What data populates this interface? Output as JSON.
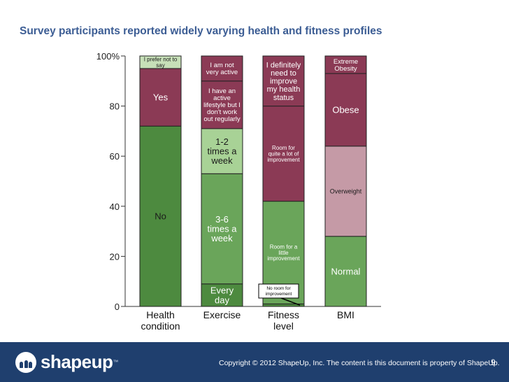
{
  "title": "Survey participants reported widely varying health and fitness profiles",
  "chart_data": {
    "type": "bar",
    "stacked": true,
    "ylim": [
      0,
      100
    ],
    "yticks": [
      {
        "value": 0,
        "label": "0"
      },
      {
        "value": 20,
        "label": "20"
      },
      {
        "value": 40,
        "label": "40"
      },
      {
        "value": 60,
        "label": "60"
      },
      {
        "value": 80,
        "label": "80"
      },
      {
        "value": 100,
        "label": "100%"
      }
    ],
    "categories": [
      {
        "name": "health-condition",
        "label_lines": [
          "Health",
          "condition"
        ],
        "segments": [
          {
            "label": "No",
            "lines": [
              "No"
            ],
            "value": 72,
            "color": "#4d8a3f",
            "text_color": "#1a1a1a",
            "size": 13
          },
          {
            "label": "Yes",
            "lines": [
              "Yes"
            ],
            "value": 23,
            "color": "#8b3a55",
            "text_color": "#ffffff",
            "size": 13
          },
          {
            "label": "I prefer not to say",
            "lines": [
              "I prefer not to",
              "say"
            ],
            "value": 5,
            "color": "#c7e0b8",
            "text_color": "#1a1a1a",
            "size": 8
          }
        ]
      },
      {
        "name": "exercise",
        "label_lines": [
          "Exercise"
        ],
        "segments": [
          {
            "label": "Every day",
            "lines": [
              "Every",
              "day"
            ],
            "value": 9,
            "color": "#4d8a3f",
            "text_color": "#ffffff",
            "size": 13
          },
          {
            "label": "3-6 times a week",
            "lines": [
              "3-6",
              "times a",
              "week"
            ],
            "value": 44,
            "color": "#6aa55a",
            "text_color": "#ffffff",
            "size": 13
          },
          {
            "label": "1-2 times a week",
            "lines": [
              "1-2",
              "times a",
              "week"
            ],
            "value": 18,
            "color": "#a8d296",
            "text_color": "#1a1a1a",
            "size": 13
          },
          {
            "label": "I have an active lifestyle but I don't work out regularly",
            "lines": [
              "I have an",
              "active",
              "lifestyle but I",
              "don't work",
              "out regularly"
            ],
            "value": 19,
            "color": "#8b3a55",
            "text_color": "#ffffff",
            "size": 9.5
          },
          {
            "label": "I am not very active",
            "lines": [
              "I am not",
              "very active"
            ],
            "value": 10,
            "color": "#8b3a55",
            "text_color": "#ffffff",
            "size": 9.5
          }
        ]
      },
      {
        "name": "fitness-level",
        "label_lines": [
          "Fitness",
          "level"
        ],
        "segments": [
          {
            "label": "No room for improvement",
            "lines": [],
            "value": 1,
            "color": "#4d8a3f",
            "text_color": "#000000",
            "size": 7
          },
          {
            "label": "Room for a little improvement",
            "lines": [
              "Room for a",
              "little",
              "improvement"
            ],
            "value": 41,
            "color": "#6aa55a",
            "text_color": "#ffffff",
            "size": 8
          },
          {
            "label": "Room for quite a lot of improvement",
            "lines": [
              "Room for",
              "quite a lot of",
              "improvement"
            ],
            "value": 38,
            "color": "#8b3a55",
            "text_color": "#ffffff",
            "size": 8
          },
          {
            "label": "I definitely need to improve my health status",
            "lines": [
              "I definitely",
              "need to",
              "improve",
              "my health",
              "status"
            ],
            "value": 20,
            "color": "#8b3a55",
            "text_color": "#ffffff",
            "size": 11
          }
        ]
      },
      {
        "name": "bmi",
        "label_lines": [
          "BMI"
        ],
        "segments": [
          {
            "label": "Normal",
            "lines": [
              "Normal"
            ],
            "value": 28,
            "color": "#6aa55a",
            "text_color": "#ffffff",
            "size": 13
          },
          {
            "label": "Overweight",
            "lines": [
              "Overweight"
            ],
            "value": 36,
            "color": "#c59aa6",
            "text_color": "#1a1a1a",
            "size": 9
          },
          {
            "label": "Obese",
            "lines": [
              "Obese"
            ],
            "value": 29,
            "color": "#8b3a55",
            "text_color": "#ffffff",
            "size": 13
          },
          {
            "label": "Extreme Obesity",
            "lines": [
              "Extreme",
              "Obesity"
            ],
            "value": 7,
            "color": "#8b3a55",
            "text_color": "#ffffff",
            "size": 9.5
          }
        ]
      }
    ],
    "annotations": [
      {
        "text_lines": [
          "No room for",
          "improvement"
        ],
        "category": "fitness-level",
        "target_value": 0.5
      }
    ]
  },
  "footer": {
    "logo_text": "shapeup",
    "logo_tm": "™",
    "copyright": "Copyright © 2012 ShapeUp, Inc. The content is this document is property of ShapeUp.",
    "page_number": "9",
    "color": "#1f3f6e"
  }
}
